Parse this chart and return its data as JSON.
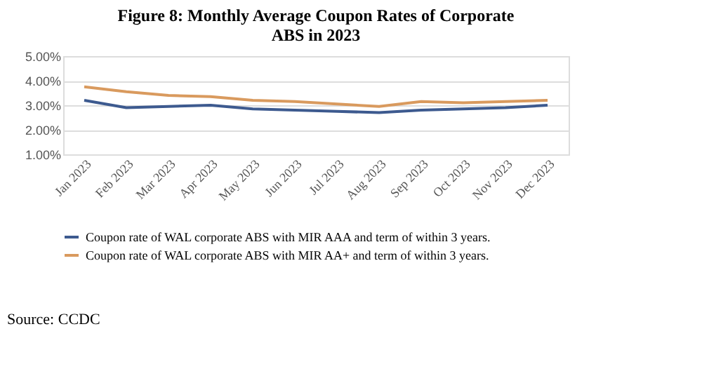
{
  "chart_data": {
    "type": "line",
    "title": [
      "Figure 8: Monthly Average Coupon Rates of Corporate",
      "ABS in 2023"
    ],
    "categories": [
      "Jan 2023",
      "Feb 2023",
      "Mar 2023",
      "Apr 2023",
      "May 2023",
      "Jun 2023",
      "Jul 2023",
      "Aug 2023",
      "Sep 2023",
      "Oct 2023",
      "Nov 2023",
      "Dec 2023"
    ],
    "series": [
      {
        "name": "Coupon rate of WAL corporate ABS with MIR AAA and term of within 3 years.",
        "color": "#3d5a8f",
        "values": [
          3.2,
          2.9,
          2.95,
          3.0,
          2.85,
          2.8,
          2.75,
          2.7,
          2.8,
          2.85,
          2.9,
          3.0
        ]
      },
      {
        "name": "Coupon rate of WAL corporate ABS with MIR AA+ and term of within 3 years.",
        "color": "#d99a5e",
        "values": [
          3.75,
          3.55,
          3.4,
          3.35,
          3.2,
          3.15,
          3.05,
          2.95,
          3.15,
          3.1,
          3.15,
          3.2
        ]
      }
    ],
    "ylim": [
      1,
      5
    ],
    "yticks": [
      {
        "value": 1,
        "label": "1.00%"
      },
      {
        "value": 2,
        "label": "2.00%"
      },
      {
        "value": 3,
        "label": "3.00%"
      },
      {
        "value": 4,
        "label": "4.00%"
      },
      {
        "value": 5,
        "label": "5.00%"
      }
    ],
    "grid": "y",
    "legend": "bottom",
    "marker": "none",
    "line_style": "solid",
    "annotations": [
      "Source: CCDC"
    ]
  }
}
